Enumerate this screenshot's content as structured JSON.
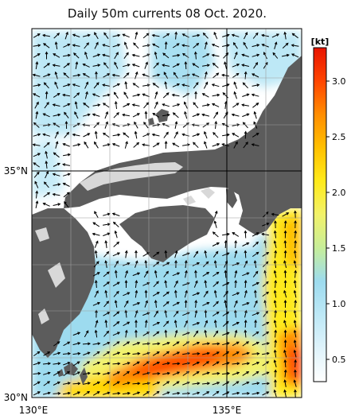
{
  "title": "Daily 50m currents 08 Oct. 2020.",
  "map": {
    "lat_labels": [
      "35°N",
      "30°N"
    ],
    "lon_labels": [
      "130°E",
      "135°E"
    ],
    "lat_range": [
      30,
      36.7
    ],
    "lon_range": [
      130,
      136.9
    ]
  },
  "colorbar": {
    "unit": "[kt]",
    "ticks": [
      "3.0",
      "2.5",
      "2.0",
      "1.5",
      "1.0",
      "0.5"
    ],
    "range": [
      0.3,
      3.3
    ],
    "stops": [
      "#ffffff",
      "#dff3fb",
      "#bde8f6",
      "#9ddbef",
      "#c7ee9a",
      "#f2f26a",
      "#ffea1a",
      "#ffc000",
      "#ff8d00",
      "#ff4500",
      "#e81400"
    ]
  },
  "colors": {
    "land": "#5c5c5c",
    "land_light": "#d8d8d8",
    "water_base": "#ffffff",
    "arrow": "#000000",
    "grid": "#9e9e9e"
  }
}
